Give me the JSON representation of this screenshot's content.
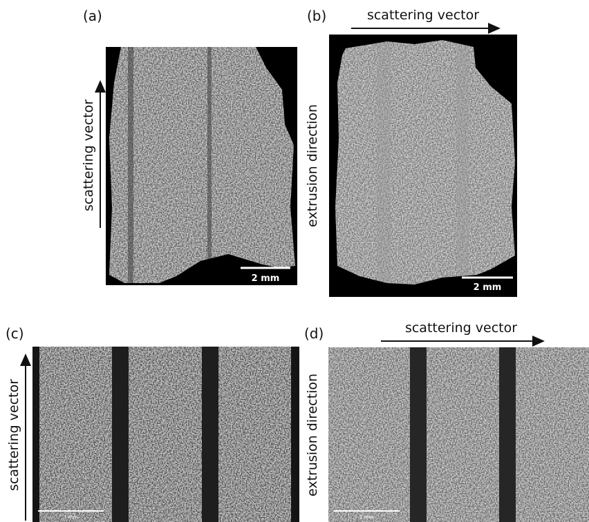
{
  "panels": [
    {
      "label": "(a)",
      "side_label": "scattering vector",
      "scale_bar": "2 mm"
    },
    {
      "label": "(b)",
      "top_label": "scattering vector",
      "side_label": "extrusion direction",
      "scale_bar": "2 mm"
    },
    {
      "label": "(c)",
      "side_label": "scattering vector",
      "scale_bar": "1 mm"
    },
    {
      "label": "(d)",
      "top_label": "scattering vector",
      "side_label": "extrusion direction",
      "scale_bar": "1 mm"
    }
  ]
}
